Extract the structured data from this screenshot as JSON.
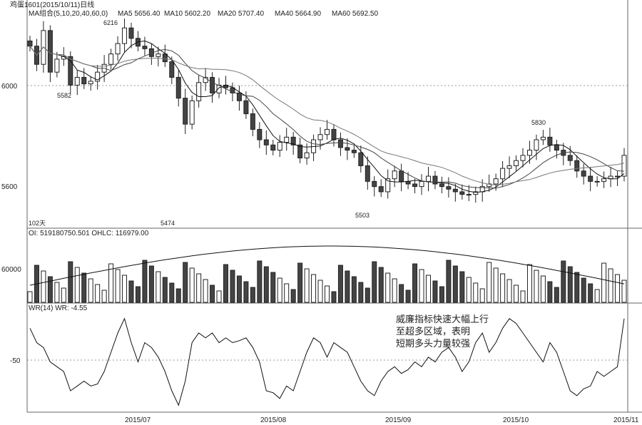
{
  "header": {
    "title": "鸡蛋1601(2015/10/11)日线",
    "ma_label": "MA组合(5,10,20,40,60,0)",
    "ma_values": [
      "MA5 5656.40",
      "MA10 5602.20",
      "MA20 5707.40",
      "MA40 5664.90",
      "MA60 5692.50"
    ]
  },
  "price_panel": {
    "y_ticks": [
      "6000",
      "5600"
    ],
    "annotations": [
      "6216",
      "5582",
      "5474",
      "5503",
      "5830"
    ],
    "bars_label": "102天"
  },
  "volume_panel": {
    "header": "OI: 519180750.501    OHLC: 116979.00",
    "y_tick": "60000"
  },
  "wr_panel": {
    "header": "WR(14)  WR: -4.55",
    "y_tick": "-50",
    "note_lines": [
      "威廉指标快速大幅上行",
      "至超多区域，表明",
      "短期多头力量较强"
    ]
  },
  "x_labels": [
    "2015/07",
    "2015/08",
    "2015/09",
    "2015/10",
    "2015/11"
  ],
  "colors": {
    "down": "#444444",
    "up": "#ffffff",
    "line": "#111111",
    "grid": "#999999"
  },
  "chart_data": [
    {
      "type": "candlestick",
      "title": "",
      "ylim": [
        5460,
        6310
      ],
      "x_tick_labels": [
        "2015/07",
        "2015/08",
        "2015/09",
        "2015/10",
        "2015/11"
      ],
      "y_tick_labels": [
        "6000",
        "5600"
      ],
      "series": [
        {
          "name": "price",
          "values": [
            6160,
            6090,
            6220,
            6060,
            6110,
            6120,
            6010,
            6040,
            6015,
            6025,
            6060,
            6090,
            6130,
            6170,
            6230,
            6190,
            6160,
            6150,
            6120,
            6130,
            6100,
            6040,
            5960,
            5860,
            5950,
            6020,
            6040,
            5980,
            6010,
            6000,
            5980,
            5950,
            5900,
            5840,
            5800,
            5780,
            5760,
            5790,
            5810,
            5780,
            5730,
            5750,
            5800,
            5820,
            5840,
            5800,
            5770,
            5760,
            5750,
            5700,
            5640,
            5620,
            5600,
            5650,
            5680,
            5640,
            5630,
            5620,
            5640,
            5660,
            5630,
            5620,
            5610,
            5600,
            5590,
            5590,
            5600,
            5620,
            5630,
            5650,
            5690,
            5700,
            5720,
            5740,
            5760,
            5800,
            5810,
            5780,
            5760,
            5740,
            5720,
            5680,
            5660,
            5640,
            5640,
            5650,
            5660,
            5660,
            5740
          ]
        }
      ]
    },
    {
      "type": "line",
      "title": "",
      "ylabel": "WR",
      "ylim": [
        -100,
        0
      ],
      "y_tick_labels": [
        "-50"
      ],
      "series": [
        {
          "name": "WR",
          "values": [
            -15,
            -30,
            -35,
            -50,
            -55,
            -60,
            -80,
            -75,
            -70,
            -75,
            -73,
            -60,
            -40,
            -20,
            -5,
            -30,
            -50,
            -30,
            -35,
            -45,
            -60,
            -80,
            -95,
            -70,
            -30,
            -20,
            -25,
            -20,
            -30,
            -25,
            -30,
            -28,
            -25,
            -35,
            -50,
            -80,
            -82,
            -88,
            -75,
            -80,
            -60,
            -40,
            -25,
            -30,
            -45,
            -30,
            -35,
            -40,
            -55,
            -70,
            -80,
            -85,
            -70,
            -60,
            -55,
            -62,
            -58,
            -50,
            -55,
            -45,
            -50,
            -40,
            -35,
            -45,
            -60,
            -50,
            -30,
            -20,
            -40,
            -30,
            -15,
            -5,
            -10,
            -20,
            -30,
            -40,
            -50,
            -30,
            -40,
            -60,
            -80,
            -85,
            -78,
            -75,
            -60,
            -65,
            -60,
            -55,
            -5
          ]
        }
      ]
    }
  ]
}
